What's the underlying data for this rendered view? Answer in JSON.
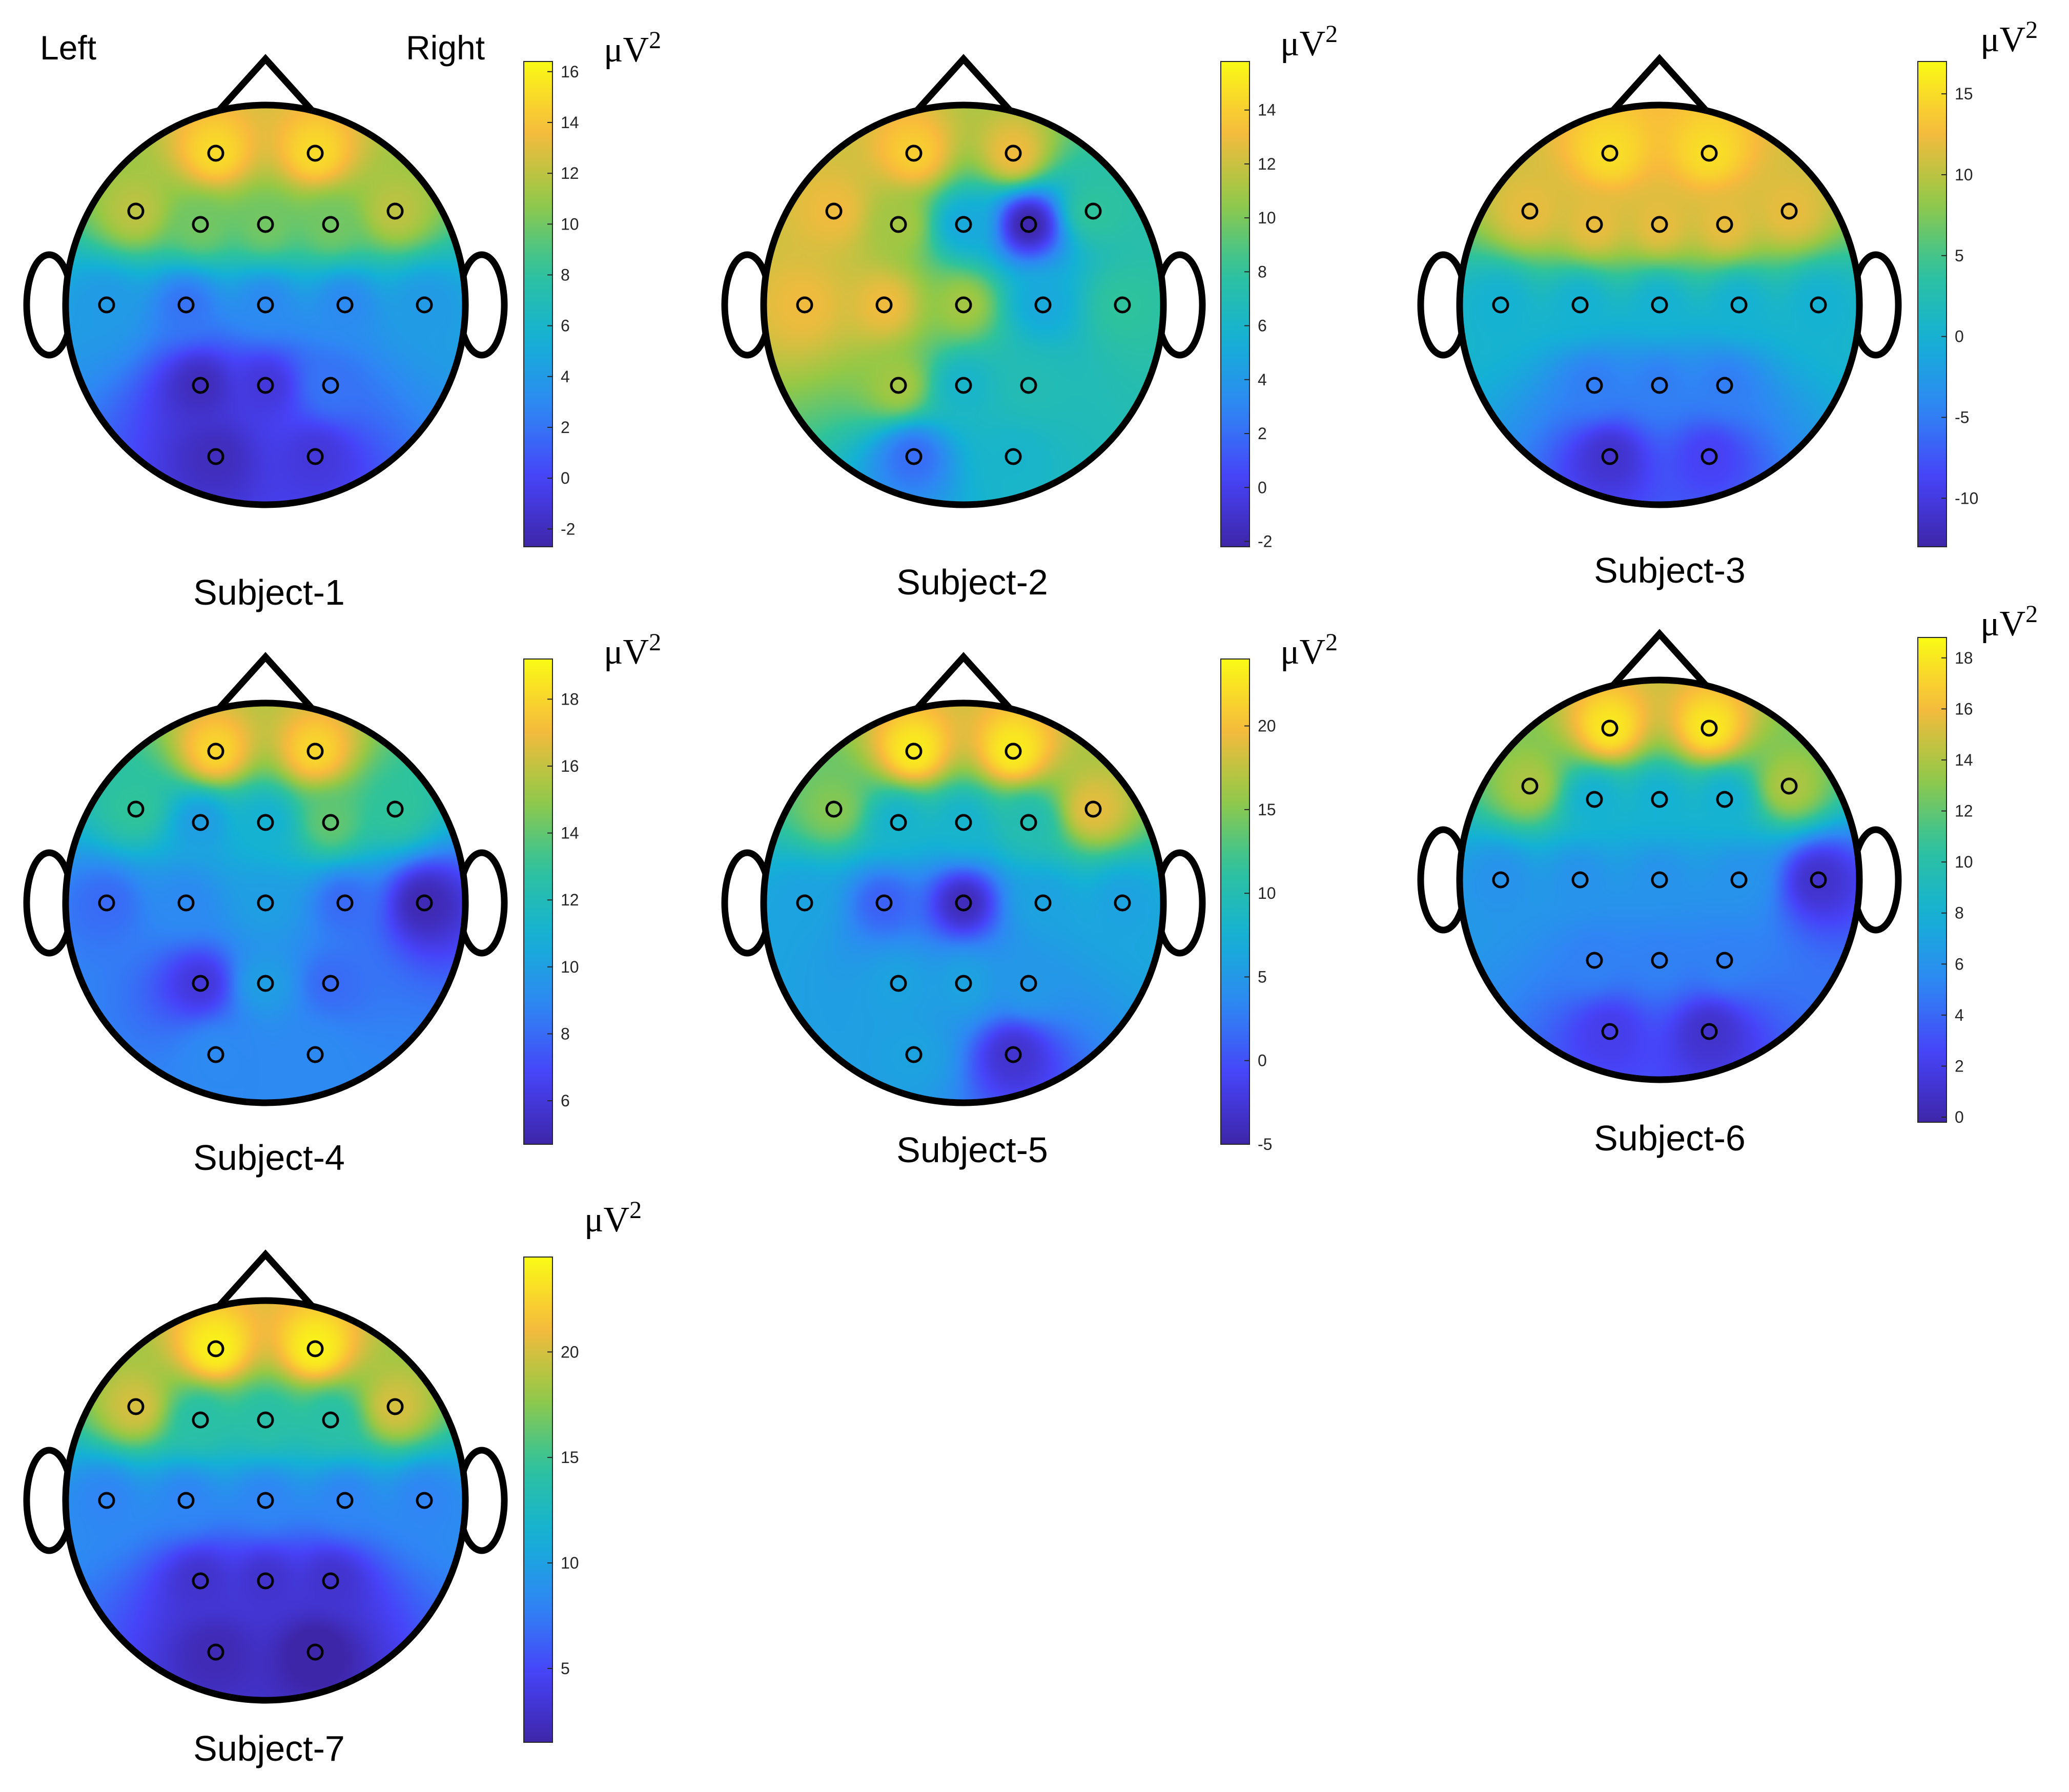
{
  "side_labels": {
    "left": "Left",
    "right": "Right"
  },
  "unit": {
    "base": "μV",
    "exp": "2"
  },
  "colormap": [
    "#3e26a8",
    "#4743f8",
    "#2f87f4",
    "#14b1d5",
    "#2fc39b",
    "#96c845",
    "#f8ba3d",
    "#f9fb15"
  ],
  "chart_data": [
    {
      "type": "heatmap",
      "title": "Subject-1",
      "clim": [
        -2.7,
        16.4
      ],
      "ticks": [
        -2,
        0,
        2,
        4,
        6,
        8,
        10,
        12,
        14,
        16
      ],
      "values": [
        15,
        15,
        12,
        10,
        10,
        10,
        12,
        4,
        2,
        3,
        3,
        4,
        -2,
        -1,
        2,
        -2,
        -1
      ]
    },
    {
      "type": "heatmap",
      "title": "Subject-2",
      "clim": [
        -2.2,
        15.8
      ],
      "ticks": [
        -2,
        0,
        2,
        4,
        6,
        8,
        10,
        12,
        14
      ],
      "values": [
        14,
        13,
        13,
        11,
        5,
        -2,
        8,
        13,
        13,
        11,
        5,
        8,
        11,
        6,
        7,
        2,
        6
      ]
    },
    {
      "type": "heatmap",
      "title": "Subject-3",
      "clim": [
        -13,
        17
      ],
      "ticks": [
        -10,
        -5,
        0,
        5,
        10,
        15
      ],
      "values": [
        15,
        15,
        12,
        12,
        12,
        12,
        12,
        0,
        0,
        0,
        0,
        0,
        -5,
        -5,
        -5,
        -11,
        -9
      ]
    },
    {
      "type": "heatmap",
      "title": "Subject-4",
      "clim": [
        4.7,
        19.2
      ],
      "ticks": [
        6,
        8,
        10,
        12,
        14,
        16,
        18
      ],
      "values": [
        18,
        18,
        13,
        10,
        11,
        14,
        13,
        8,
        9,
        10,
        8,
        5,
        6,
        10,
        8,
        9,
        9
      ]
    },
    {
      "type": "heatmap",
      "title": "Subject-5",
      "clim": [
        -5,
        24
      ],
      "ticks": [
        -5,
        0,
        5,
        10,
        15,
        20
      ],
      "values": [
        23,
        23,
        15,
        8,
        8,
        10,
        19,
        6,
        1,
        -4,
        6,
        6,
        6,
        6,
        5,
        6,
        -3
      ]
    },
    {
      "type": "heatmap",
      "title": "Subject-6",
      "clim": [
        -0.2,
        18.8
      ],
      "ticks": [
        0,
        2,
        4,
        6,
        8,
        10,
        12,
        14,
        16,
        18
      ],
      "values": [
        18,
        18,
        14,
        8,
        8,
        8,
        14,
        6,
        6,
        6,
        6,
        1,
        5,
        5,
        5,
        2,
        1
      ]
    },
    {
      "type": "heatmap",
      "title": "Subject-7",
      "clim": [
        1.5,
        24.5
      ],
      "ticks": [
        5,
        10,
        15,
        20
      ],
      "values": [
        24,
        24,
        20,
        14,
        14,
        14,
        20,
        8,
        8,
        8,
        8,
        8,
        3,
        3,
        3,
        2,
        1
      ]
    }
  ]
}
